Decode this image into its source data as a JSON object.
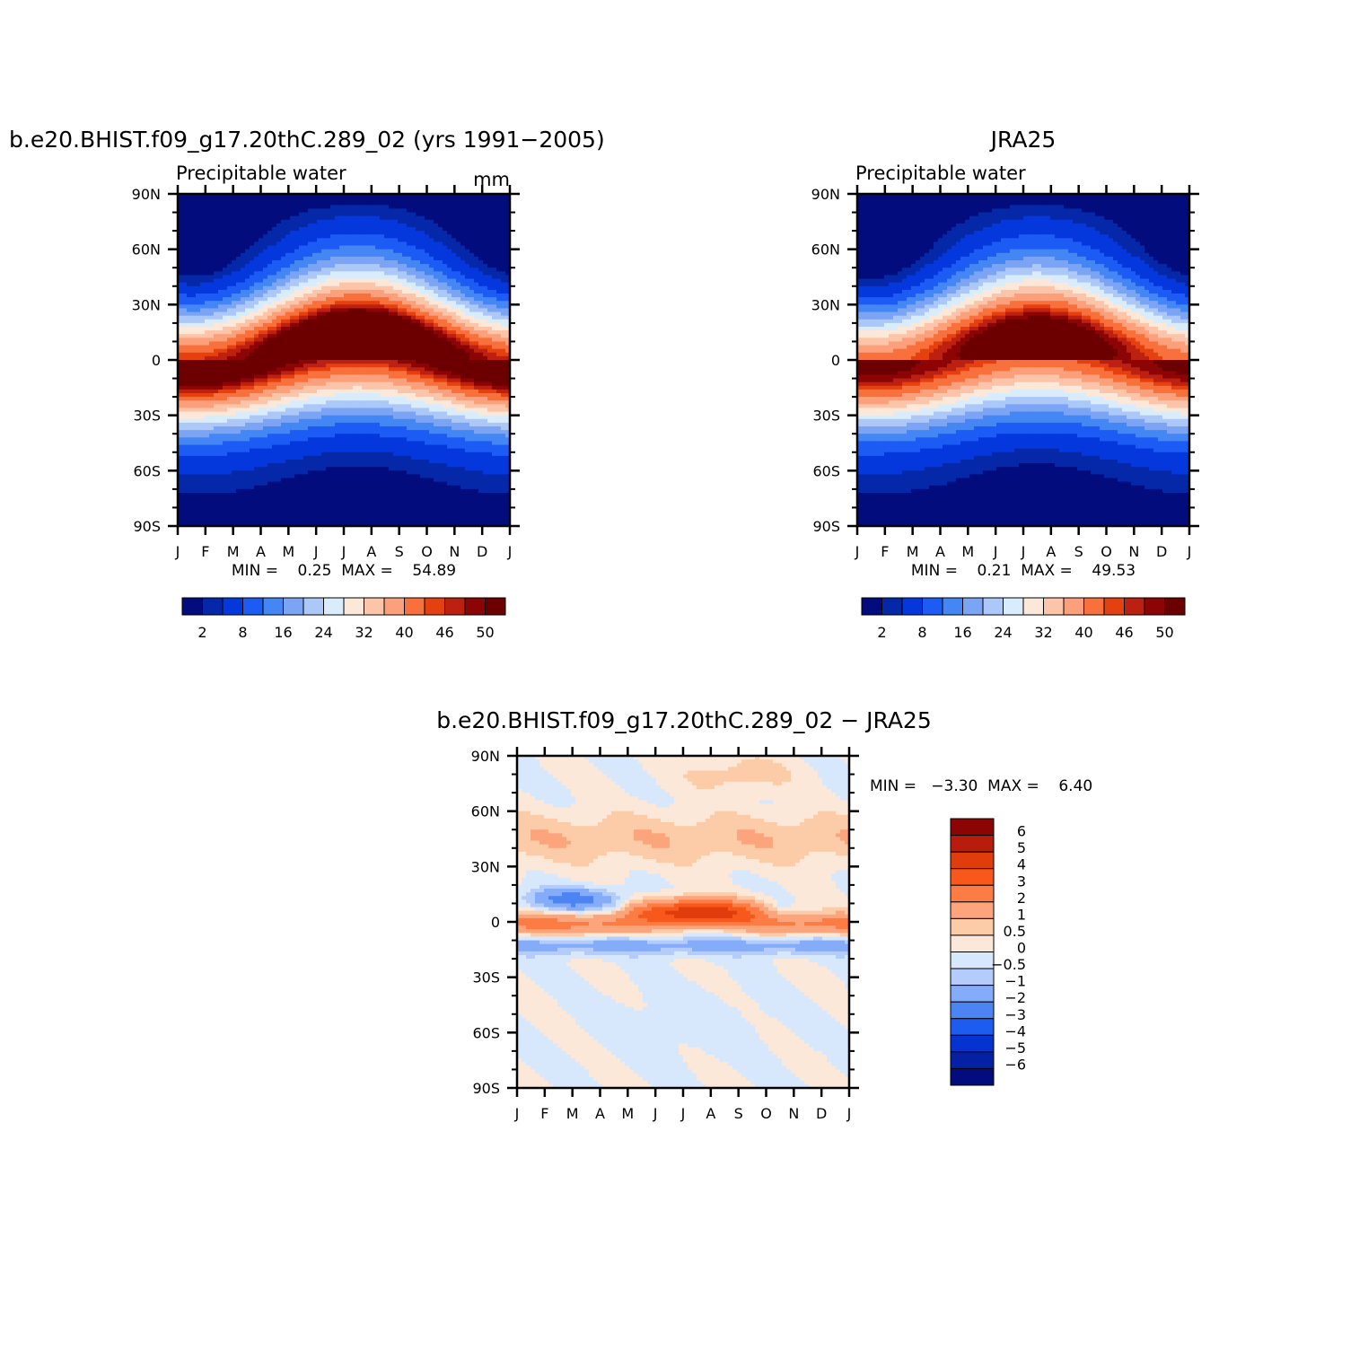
{
  "chart_data": [
    {
      "type": "heatmap",
      "title": "b.e20.BHIST.f09_g17.20thC.289_02 (yrs 1991−2005)",
      "subtitle": "Precipitable water",
      "units": "mm",
      "x_ticks": [
        "J",
        "F",
        "M",
        "A",
        "M",
        "J",
        "J",
        "A",
        "S",
        "O",
        "N",
        "D",
        "J"
      ],
      "y_ticks": [
        "90N",
        "60N",
        "30N",
        "0",
        "30S",
        "60S",
        "90S"
      ],
      "stats_text": "MIN =    0.25  MAX =    54.89",
      "min": 0.25,
      "max": 54.89,
      "colorbar_labels": [
        "2",
        "8",
        "16",
        "24",
        "32",
        "40",
        "46",
        "50"
      ],
      "colorbar_levels": [
        2,
        4,
        8,
        12,
        16,
        20,
        24,
        28,
        32,
        36,
        40,
        44,
        46,
        48,
        50
      ],
      "colorbar_colors": [
        "#020c7c",
        "#0428a8",
        "#0438dc",
        "#1c5cf4",
        "#4486f4",
        "#7ca4f4",
        "#acc8f8",
        "#d8ecfc",
        "#fce8d8",
        "#fcc4a8",
        "#fca07c",
        "#f8703c",
        "#e44010",
        "#bc2010",
        "#8c0404",
        "#6c0000"
      ]
    },
    {
      "type": "heatmap",
      "title": "JRA25",
      "subtitle": "Precipitable water",
      "units": "",
      "x_ticks": [
        "J",
        "F",
        "M",
        "A",
        "M",
        "J",
        "J",
        "A",
        "S",
        "O",
        "N",
        "D",
        "J"
      ],
      "y_ticks": [
        "90N",
        "60N",
        "30N",
        "0",
        "30S",
        "60S",
        "90S"
      ],
      "stats_text": "MIN =    0.21  MAX =    49.53",
      "min": 0.21,
      "max": 49.53,
      "colorbar_labels": [
        "2",
        "8",
        "16",
        "24",
        "32",
        "40",
        "46",
        "50"
      ],
      "colorbar_levels": [
        2,
        4,
        8,
        12,
        16,
        20,
        24,
        28,
        32,
        36,
        40,
        44,
        46,
        48,
        50
      ],
      "colorbar_colors": [
        "#020c7c",
        "#0428a8",
        "#0438dc",
        "#1c5cf4",
        "#4486f4",
        "#7ca4f4",
        "#acc8f8",
        "#d8ecfc",
        "#fce8d8",
        "#fcc4a8",
        "#fca07c",
        "#f8703c",
        "#e44010",
        "#bc2010",
        "#8c0404",
        "#6c0000"
      ]
    },
    {
      "type": "heatmap",
      "title": "b.e20.BHIST.f09_g17.20thC.289_02 − JRA25",
      "x_ticks": [
        "J",
        "F",
        "M",
        "A",
        "M",
        "J",
        "J",
        "A",
        "S",
        "O",
        "N",
        "D",
        "J"
      ],
      "y_ticks": [
        "90N",
        "60N",
        "30N",
        "0",
        "30S",
        "60S",
        "90S"
      ],
      "stats_text": "MIN =   −3.30  MAX =    6.40",
      "min": -3.3,
      "max": 6.4,
      "colorbar_labels": [
        "6",
        "5",
        "4",
        "3",
        "2",
        "1",
        "0.5",
        "0",
        "−0.5",
        "−1",
        "−2",
        "−3",
        "−4",
        "−5",
        "−6"
      ],
      "colorbar_colors": [
        "#8c0404",
        "#b81c0c",
        "#e03c0c",
        "#f8581c",
        "#fc7c44",
        "#fca47c",
        "#fccca8",
        "#fce8d8",
        "#d8e8fc",
        "#b4ccfc",
        "#84acf8",
        "#4c84f4",
        "#1c5cf0",
        "#0434d0",
        "#0420a4",
        "#020c7c"
      ]
    }
  ]
}
